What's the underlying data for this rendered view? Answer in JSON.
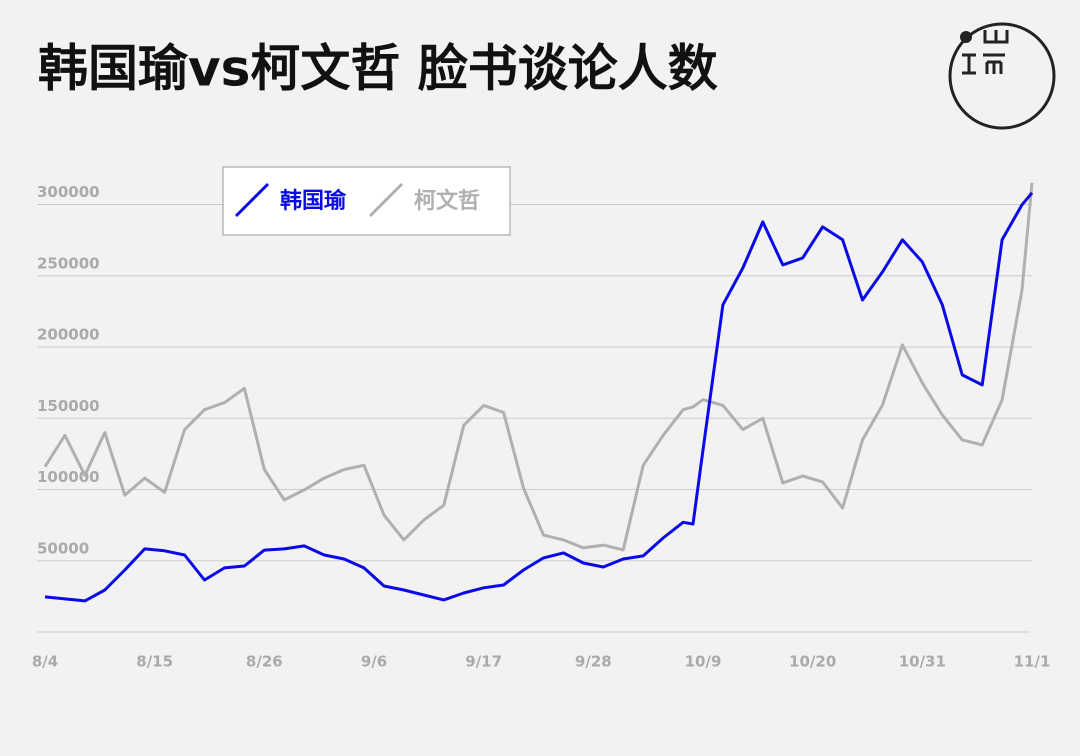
{
  "chart_data": {
    "type": "line",
    "title": "韩国瑜vs柯文哲 脸书谈论人数",
    "x": [
      0,
      2,
      4,
      6,
      8,
      10,
      12,
      14,
      16,
      18,
      20,
      22,
      24,
      26,
      28,
      30,
      32,
      34,
      36,
      38,
      40,
      42,
      44,
      46,
      48,
      50,
      52,
      54,
      56,
      58,
      60,
      62,
      64,
      65,
      66,
      68,
      70,
      72,
      74,
      76,
      78,
      80,
      82,
      84,
      86,
      88,
      90,
      92,
      94,
      96,
      98,
      99
    ],
    "series": [
      {
        "name": "韩国瑜",
        "color": "#0a0ae6",
        "values": [
          24600,
          23200,
          21800,
          29500,
          43500,
          58300,
          57000,
          54000,
          36500,
          45000,
          46300,
          57500,
          58300,
          60400,
          54000,
          51200,
          45000,
          32300,
          29500,
          26000,
          22500,
          27400,
          31000,
          33000,
          43500,
          52000,
          55500,
          48400,
          45600,
          51200,
          53400,
          66000,
          77000,
          75800,
          127800,
          229600,
          255500,
          287800,
          257600,
          262500,
          284300,
          275200,
          233000,
          252700,
          275200,
          259700,
          229600,
          180400,
          173400,
          275200,
          299800,
          308200
        ]
      },
      {
        "name": "柯文哲",
        "color": "#b0b0b0",
        "values": [
          116000,
          138000,
          110000,
          140000,
          96000,
          108000,
          98000,
          142000,
          156000,
          161000,
          171000,
          114000,
          92700,
          99700,
          108000,
          114000,
          117000,
          82000,
          64600,
          78600,
          89000,
          145000,
          159000,
          154000,
          101000,
          68000,
          64600,
          59000,
          61000,
          57600,
          117000,
          138000,
          156000,
          158000,
          163000,
          159000,
          142000,
          150000,
          104600,
          109500,
          105300,
          87000,
          134800,
          159300,
          201500,
          174800,
          152300,
          134800,
          131300,
          162900,
          240000,
          315200
        ]
      }
    ],
    "xlim": [
      0,
      99
    ],
    "xticks": [
      {
        "value": 0,
        "label": "8/4"
      },
      {
        "value": 11,
        "label": "8/15"
      },
      {
        "value": 22,
        "label": "8/26"
      },
      {
        "value": 33,
        "label": "9/6"
      },
      {
        "value": 44,
        "label": "9/17"
      },
      {
        "value": 55,
        "label": "9/28"
      },
      {
        "value": 66,
        "label": "10/9"
      },
      {
        "value": 77,
        "label": "10/20"
      },
      {
        "value": 88,
        "label": "10/31"
      },
      {
        "value": 99,
        "label": "11/1"
      }
    ],
    "ylim": [
      0,
      320000
    ],
    "yticks": [
      50000,
      100000,
      150000,
      200000,
      250000,
      300000
    ],
    "grid": true,
    "legend": "upper left"
  }
}
